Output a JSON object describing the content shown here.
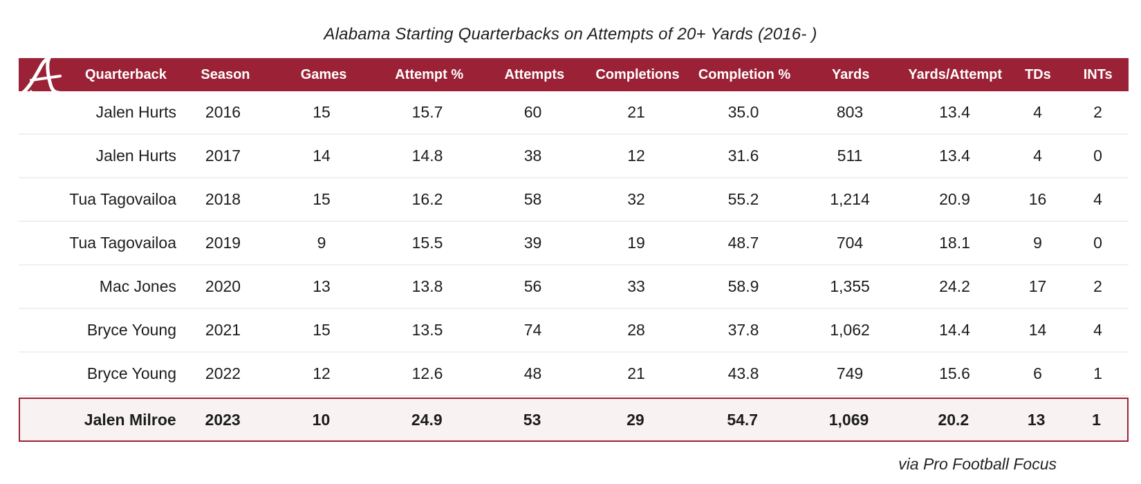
{
  "chart_data": {
    "type": "table",
    "title": "Alabama Starting Quarterbacks on Attempts of 20+ Yards (2016- )",
    "columns": [
      "Quarterback",
      "Season",
      "Games",
      "Attempt %",
      "Attempts",
      "Completions",
      "Completion %",
      "Yards",
      "Yards/Attempt",
      "TDs",
      "INTs"
    ],
    "rows": [
      [
        "Jalen Hurts",
        "2016",
        "15",
        "15.7",
        "60",
        "21",
        "35.0",
        "803",
        "13.4",
        "4",
        "2"
      ],
      [
        "Jalen Hurts",
        "2017",
        "14",
        "14.8",
        "38",
        "12",
        "31.6",
        "511",
        "13.4",
        "4",
        "0"
      ],
      [
        "Tua Tagovailoa",
        "2018",
        "15",
        "16.2",
        "58",
        "32",
        "55.2",
        "1,214",
        "20.9",
        "16",
        "4"
      ],
      [
        "Tua Tagovailoa",
        "2019",
        "9",
        "15.5",
        "39",
        "19",
        "48.7",
        "704",
        "18.1",
        "9",
        "0"
      ],
      [
        "Mac Jones",
        "2020",
        "13",
        "13.8",
        "56",
        "33",
        "58.9",
        "1,355",
        "24.2",
        "17",
        "2"
      ],
      [
        "Bryce Young",
        "2021",
        "15",
        "13.5",
        "74",
        "28",
        "37.8",
        "1,062",
        "14.4",
        "14",
        "4"
      ],
      [
        "Bryce Young",
        "2022",
        "12",
        "12.6",
        "48",
        "21",
        "43.8",
        "749",
        "15.6",
        "6",
        "1"
      ],
      [
        "Jalen Milroe",
        "2023",
        "10",
        "24.9",
        "53",
        "29",
        "54.7",
        "1,069",
        "20.2",
        "13",
        "1"
      ]
    ],
    "highlight_row": 7,
    "source": "via Pro Football Focus",
    "logo_icon": "alabama-script-a-logo",
    "colors": {
      "header_bg": "#9b2236",
      "highlight_bg": "#f8f2f2",
      "highlight_border": "#9b2236"
    }
  }
}
